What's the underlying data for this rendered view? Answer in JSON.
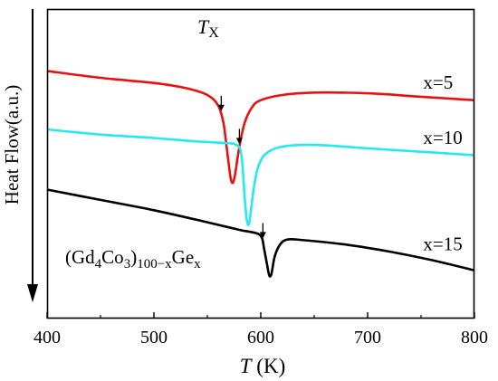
{
  "chart_data": {
    "type": "line",
    "ylabel": "Heat Flow(a.u.)",
    "xlabel": {
      "italic": "T",
      "rest": " (K)"
    },
    "xlim": [
      400,
      800
    ],
    "xticks": [
      "400",
      "500",
      "600",
      "700",
      "800"
    ],
    "grid": false,
    "annotation": {
      "main": "T",
      "sub": "X"
    },
    "formula": {
      "a": "(Gd",
      "b": "4",
      "c": "Co",
      "d": "3",
      "e": ")",
      "f": "100−x",
      "g": "Ge",
      "h": "x"
    },
    "series": [
      {
        "name": "x=5",
        "color": "#e81010",
        "label_x": 752,
        "arrow_x": 563,
        "points": [
          [
            400,
            52
          ],
          [
            450,
            50
          ],
          [
            500,
            48.5
          ],
          [
            530,
            47
          ],
          [
            550,
            45
          ],
          [
            560,
            42
          ],
          [
            565,
            37
          ],
          [
            568,
            30
          ],
          [
            570,
            25
          ],
          [
            572,
            20.5
          ],
          [
            574,
            19.5
          ],
          [
            576,
            22
          ],
          [
            580,
            30
          ],
          [
            585,
            37
          ],
          [
            592,
            41.5
          ],
          [
            600,
            43.5
          ],
          [
            620,
            45
          ],
          [
            650,
            45.7
          ],
          [
            700,
            45.5
          ],
          [
            750,
            44.5
          ],
          [
            800,
            43.5
          ]
        ]
      },
      {
        "name": "x=10",
        "color": "#26e8f0",
        "label_x": 752,
        "arrow_x": 580,
        "points": [
          [
            400,
            35
          ],
          [
            450,
            33.5
          ],
          [
            500,
            32.5
          ],
          [
            540,
            31.5
          ],
          [
            570,
            31
          ],
          [
            577,
            30.5
          ],
          [
            581,
            29
          ],
          [
            583,
            24
          ],
          [
            585,
            15
          ],
          [
            587,
            8.5
          ],
          [
            589,
            7.5
          ],
          [
            591,
            12
          ],
          [
            594,
            19
          ],
          [
            598,
            24.5
          ],
          [
            605,
            28
          ],
          [
            620,
            30
          ],
          [
            650,
            30.5
          ],
          [
            700,
            29.5
          ],
          [
            750,
            28.5
          ],
          [
            800,
            27.5
          ]
        ]
      },
      {
        "name": "x=15",
        "color": "#000000",
        "label_x": 752,
        "arrow_x": 602,
        "points": [
          [
            400,
            17.5
          ],
          [
            450,
            14.5
          ],
          [
            500,
            11.5
          ],
          [
            550,
            8
          ],
          [
            580,
            5.8
          ],
          [
            596,
            4.8
          ],
          [
            601,
            3.5
          ],
          [
            603,
            0.5
          ],
          [
            606,
            -4.5
          ],
          [
            608,
            -7.5
          ],
          [
            610,
            -7
          ],
          [
            613,
            -2
          ],
          [
            618,
            1.5
          ],
          [
            625,
            3
          ],
          [
            640,
            2.8
          ],
          [
            680,
            1.5
          ],
          [
            720,
            -0.5
          ],
          [
            760,
            -3
          ],
          [
            800,
            -6
          ]
        ]
      }
    ]
  }
}
